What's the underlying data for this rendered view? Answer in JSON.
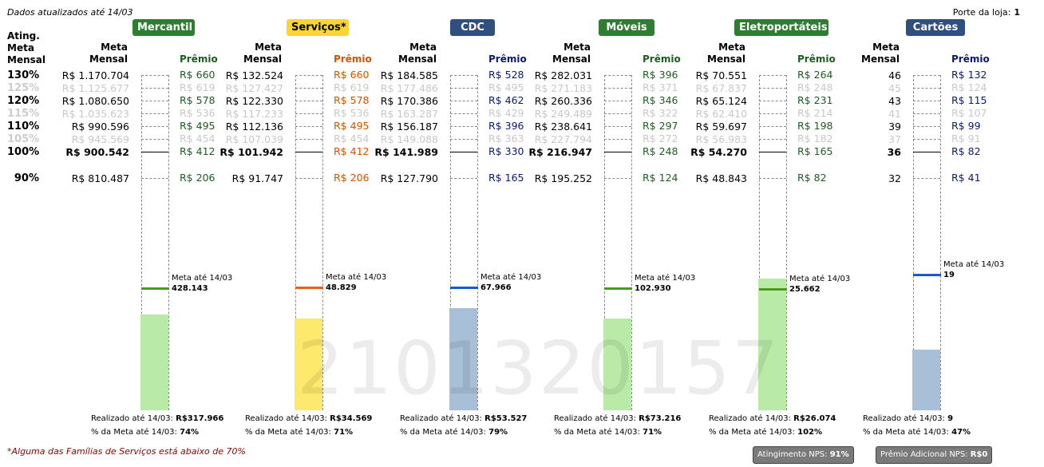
{
  "header": {
    "updated": "Dados atualizados até 14/03",
    "porte_label": "Porte da loja:",
    "porte_value": "1"
  },
  "ating_header": [
    "Ating.",
    "Meta",
    "Mensal"
  ],
  "ating_levels": [
    "130%",
    "125%",
    "120%",
    "115%",
    "110%",
    "105%",
    "100%",
    "90%"
  ],
  "common": {
    "meta_header": [
      "Meta",
      "Mensal"
    ],
    "premio_header": "Prêmio",
    "meta_ate_label": "Meta até 14/03",
    "realizado_label": "Realizado até 14/03:",
    "pct_label": "% da Meta até 14/03:"
  },
  "families": [
    {
      "name": "Mercantil",
      "badge_color": "#2e7d32",
      "premio_color": "#1b5e20",
      "fill_color": "#b9eaa8",
      "mark_color": "#4a9a1e",
      "metas": [
        "R$ 1.170.704",
        "R$ 1.125.677",
        "R$ 1.080.650",
        "R$ 1.035.623",
        "R$ 990.596",
        "R$ 945.569",
        "R$ 900.542",
        "R$ 810.487"
      ],
      "premios": [
        "R$ 660",
        "R$ 619",
        "R$ 578",
        "R$ 536",
        "R$ 495",
        "R$ 454",
        "R$ 412",
        "R$ 206"
      ],
      "meta_ate": "428.143",
      "realizado": "R$317.966",
      "pct": "74%",
      "fill_fraction": 0.74
    },
    {
      "name": "Serviços*",
      "badge_color": "#fcd535",
      "premio_color": "#d35400",
      "fill_color": "#fde96b",
      "mark_color": "#e8601c",
      "metas": [
        "R$ 132.524",
        "R$ 127.427",
        "R$ 122.330",
        "R$ 117.233",
        "R$ 112.136",
        "R$ 107.039",
        "R$ 101.942",
        "R$ 91.747"
      ],
      "premios": [
        "R$ 660",
        "R$ 619",
        "R$ 578",
        "R$ 536",
        "R$ 495",
        "R$ 454",
        "R$ 412",
        "R$ 206"
      ],
      "meta_ate": "48.829",
      "realizado": "R$34.569",
      "pct": "71%",
      "fill_fraction": 0.71
    },
    {
      "name": "CDC",
      "badge_color": "#2f4f7f",
      "premio_color": "#0d1a6b",
      "fill_color": "#a8bfd8",
      "mark_color": "#1a56d6",
      "metas": [
        "R$ 184.585",
        "R$ 177.486",
        "R$ 170.386",
        "R$ 163.287",
        "R$ 156.187",
        "R$ 149.088",
        "R$ 141.989",
        "R$ 127.790"
      ],
      "premios": [
        "R$ 528",
        "R$ 495",
        "R$ 462",
        "R$ 429",
        "R$ 396",
        "R$ 363",
        "R$ 330",
        "R$ 165"
      ],
      "meta_ate": "67.966",
      "realizado": "R$53.527",
      "pct": "79%",
      "fill_fraction": 0.79
    },
    {
      "name": "Móveis",
      "badge_color": "#2e7d32",
      "premio_color": "#1b5e20",
      "fill_color": "#b9eaa8",
      "mark_color": "#4a9a1e",
      "metas": [
        "R$ 282.031",
        "R$ 271.183",
        "R$ 260.336",
        "R$ 249.489",
        "R$ 238.641",
        "R$ 227.794",
        "R$ 216.947",
        "R$ 195.252"
      ],
      "premios": [
        "R$ 396",
        "R$ 371",
        "R$ 346",
        "R$ 322",
        "R$ 297",
        "R$ 272",
        "R$ 248",
        "R$ 124"
      ],
      "meta_ate": "102.930",
      "realizado": "R$73.216",
      "pct": "71%",
      "fill_fraction": 0.71
    },
    {
      "name": "Eletroportáteis",
      "badge_color": "#2e7d32",
      "premio_color": "#1b5e20",
      "fill_color": "#b9eaa8",
      "mark_color": "#4a9a1e",
      "metas": [
        "R$ 70.551",
        "R$ 67.837",
        "R$ 65.124",
        "R$ 62.410",
        "R$ 59.697",
        "R$ 56.983",
        "R$ 54.270",
        "R$ 48.843"
      ],
      "premios": [
        "R$ 264",
        "R$ 248",
        "R$ 231",
        "R$ 214",
        "R$ 198",
        "R$ 182",
        "R$ 165",
        "R$ 82"
      ],
      "meta_ate": "25.662",
      "realizado": "R$26.074",
      "pct": "102%",
      "fill_fraction": 1.02
    },
    {
      "name": "Cartões",
      "badge_color": "#2f4f7f",
      "premio_color": "#0d1a6b",
      "fill_color": "#a8bfd8",
      "mark_color": "#1a56d6",
      "metas": [
        "46",
        "45",
        "43",
        "41",
        "39",
        "37",
        "36",
        "32"
      ],
      "premios": [
        "R$ 132",
        "R$ 124",
        "R$ 115",
        "R$ 107",
        "R$ 99",
        "R$ 91",
        "R$ 82",
        "R$ 41"
      ],
      "meta_ate": "19",
      "realizado": "9",
      "pct": "47%",
      "fill_fraction": 0.47
    }
  ],
  "footnote": "*Alguma das Famílias de Serviços está abaixo de 70%",
  "nps": {
    "atingimento_label": "Atingimento NPS:",
    "atingimento_value": "91%",
    "premio_label": "Prêmio Adicional NPS:",
    "premio_value": "R$0"
  },
  "watermark": "2101320157"
}
